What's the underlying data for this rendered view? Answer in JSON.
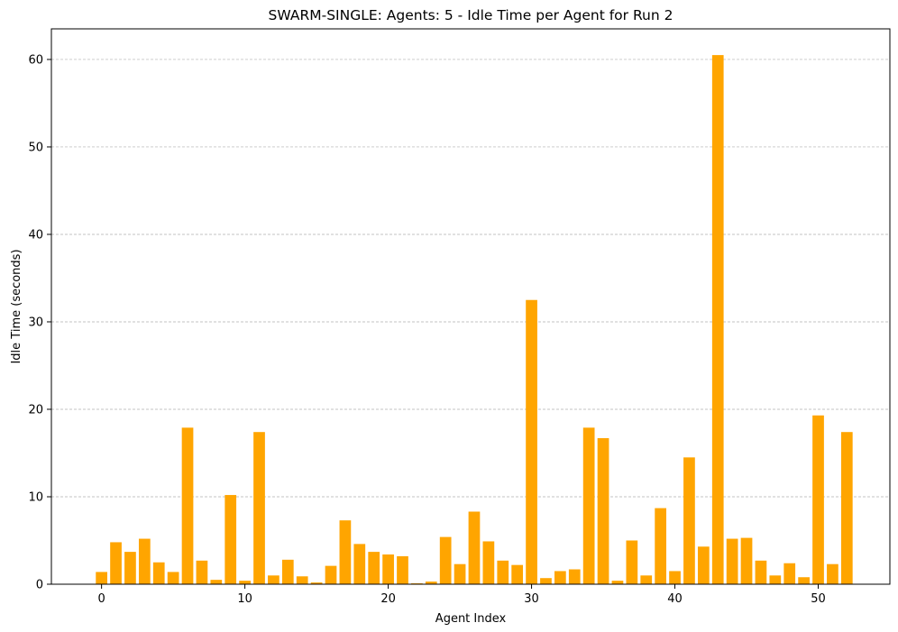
{
  "chart_data": {
    "type": "bar",
    "title": "SWARM-SINGLE: Agents: 5 - Idle Time per Agent for Run 2",
    "xlabel": "Agent Index",
    "ylabel": "Idle Time (seconds)",
    "x": [
      0,
      1,
      2,
      3,
      4,
      5,
      6,
      7,
      8,
      9,
      10,
      11,
      12,
      13,
      14,
      15,
      16,
      17,
      18,
      19,
      20,
      21,
      22,
      23,
      24,
      25,
      26,
      27,
      28,
      29,
      30,
      31,
      32,
      33,
      34,
      35,
      36,
      37,
      38,
      39,
      40,
      41,
      42,
      43,
      44,
      45,
      46,
      47,
      48,
      49,
      50,
      51,
      52
    ],
    "values": [
      1.4,
      4.8,
      3.7,
      5.2,
      2.5,
      1.4,
      17.9,
      2.7,
      0.5,
      10.2,
      0.4,
      17.4,
      1.0,
      2.8,
      0.9,
      0.2,
      2.1,
      7.3,
      4.6,
      3.7,
      3.4,
      3.2,
      0.1,
      0.3,
      5.4,
      2.3,
      8.3,
      4.9,
      2.7,
      2.2,
      32.5,
      0.7,
      1.5,
      1.7,
      17.9,
      16.7,
      0.4,
      5.0,
      1.0,
      8.7,
      1.5,
      14.5,
      4.3,
      60.5,
      5.2,
      5.3,
      2.7,
      1.0,
      2.4,
      0.8,
      19.3,
      2.3,
      17.4
    ],
    "xlim": [
      -3.5,
      55.0
    ],
    "ylim": [
      0,
      63.5
    ],
    "xticks": [
      0,
      10,
      20,
      30,
      40,
      50
    ],
    "yticks": [
      0,
      10,
      20,
      30,
      40,
      50,
      60
    ],
    "grid": "y-dashed",
    "bar_color": "#ffa500",
    "grid_color": "#b0b0b0"
  }
}
